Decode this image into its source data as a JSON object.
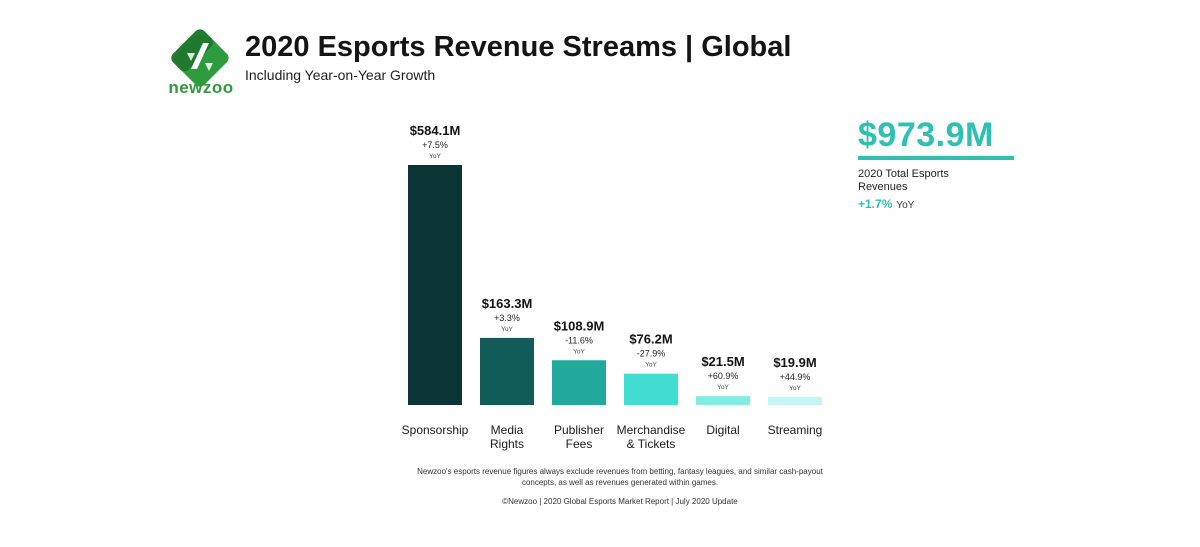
{
  "brand": {
    "name": "newzoo",
    "green": "#2e9b3f",
    "dark_green": "#1f7a2e"
  },
  "header": {
    "title": "2020 Esports Revenue Streams | Global",
    "subtitle": "Including Year-on-Year Growth"
  },
  "total": {
    "value": "$973.9M",
    "label": "2020 Total Esports Revenues",
    "growth": "+1.7%",
    "growth_unit": "YoY",
    "accent": "#2ec0b0"
  },
  "chart_data": {
    "type": "bar",
    "categories": [
      "Sponsorship",
      "Media\nRights",
      "Publisher\nFees",
      "Merchandise\n& Tickets",
      "Digital",
      "Streaming"
    ],
    "values": [
      584.1,
      163.3,
      108.9,
      76.2,
      21.5,
      19.9
    ],
    "value_labels": [
      "$584.1M",
      "$163.3M",
      "$108.9M",
      "$76.2M",
      "$21.5M",
      "$19.9M"
    ],
    "growth_labels": [
      "+7.5%",
      "+3.3%",
      "-11.6%",
      "-27.9%",
      "+60.9%",
      "+44.9%"
    ],
    "growth_unit": "YoY",
    "colors": [
      "#0b3434",
      "#115b58",
      "#23a99c",
      "#41ddd0",
      "#84ebe2",
      "#c5f5f0"
    ],
    "title": "",
    "xlabel": "",
    "ylabel": "",
    "ylim": [
      0,
      584.1
    ],
    "grid": false,
    "legend": "none"
  },
  "footer": {
    "note": "Newzoo's esports revenue figures always exclude revenues from betting, fantasy leagues, and similar cash-payout concepts, as well as revenues generated within games.",
    "source": "©Newzoo | 2020 Global Esports Market Report | July 2020 Update"
  }
}
